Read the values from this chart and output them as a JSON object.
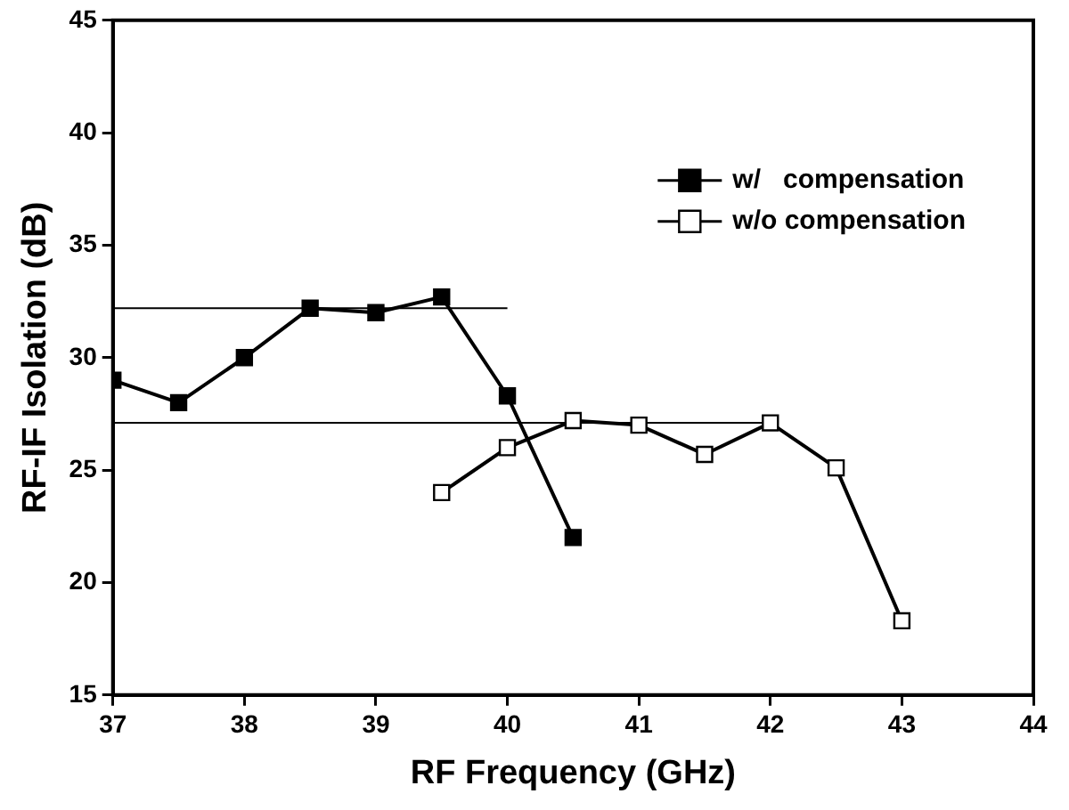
{
  "chart_data": {
    "type": "line",
    "xlabel": "RF Frequency (GHz)",
    "ylabel": "RF-IF Isolation (dB)",
    "xlim": [
      37,
      44
    ],
    "xticks": [
      37,
      38,
      39,
      40,
      41,
      42,
      43,
      44
    ],
    "ylim": [
      15,
      45
    ],
    "yticks": [
      15,
      20,
      25,
      30,
      35,
      40,
      45
    ],
    "grid": false,
    "legend": "top right",
    "line_style": "solid",
    "series": [
      {
        "name": "w/   compensation",
        "color": "#000000",
        "marker": "square",
        "x": [
          37,
          37.5,
          38,
          38.5,
          39,
          39.5,
          40,
          40.5
        ],
        "values": [
          29,
          28,
          30,
          32.2,
          32,
          32.7,
          28.3,
          22
        ]
      },
      {
        "name": "w/o compensation",
        "color": "#ffffff",
        "marker": "square",
        "x": [
          39.5,
          40,
          40.5,
          41,
          41.5,
          42,
          42.5,
          43
        ],
        "values": [
          24,
          26,
          27.2,
          27,
          25.7,
          27.1,
          25.1,
          18.3
        ]
      },
      {
        "color": "#000000",
        "marker": "none",
        "x": [
          37,
          40
        ],
        "values": [
          32.2,
          32.2
        ]
      },
      {
        "color": "#000000",
        "marker": "none",
        "x": [
          37,
          42
        ],
        "values": [
          27.1,
          27.1
        ]
      }
    ]
  }
}
